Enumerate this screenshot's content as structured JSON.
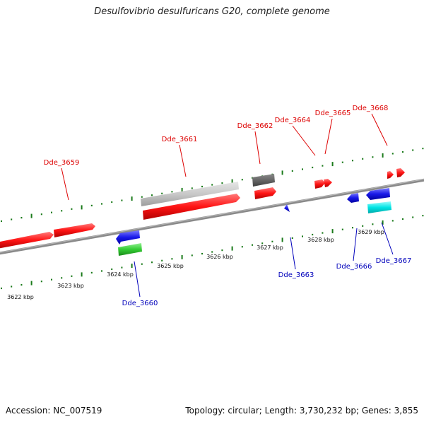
{
  "title": "Desulfovibrio desulfuricans G20, complete genome",
  "footer": {
    "accession": "Accession: NC_007519",
    "summary": "Topology: circular; Length: 3,730,232 bp; Genes: 3,855"
  },
  "axis_labels": [
    "3622 kbp",
    "3623 kbp",
    "3624 kbp",
    "3625 kbp",
    "3626 kbp",
    "3627 kbp",
    "3628 kbp",
    "3629 kbp"
  ],
  "gene_labels_forward": [
    "Dde_3659",
    "Dde_3661",
    "Dde_3662",
    "Dde_3664",
    "Dde_3665",
    "Dde_3668"
  ],
  "gene_labels_reverse": [
    "Dde_3660",
    "Dde_3663",
    "Dde_3666",
    "Dde_3667"
  ],
  "colors": {
    "forward_label": "#dd0000",
    "reverse_label": "#0000bb",
    "backbone": "#8a8a8a",
    "tick": "#1a7a1a",
    "cds_forward": "#ff1010",
    "cds_reverse": "#1010e0",
    "gray_feature": "#c8c8c8",
    "dark_feature": "#666666",
    "green_feature": "#33cc33",
    "cyan_feature": "#00e5e5"
  }
}
